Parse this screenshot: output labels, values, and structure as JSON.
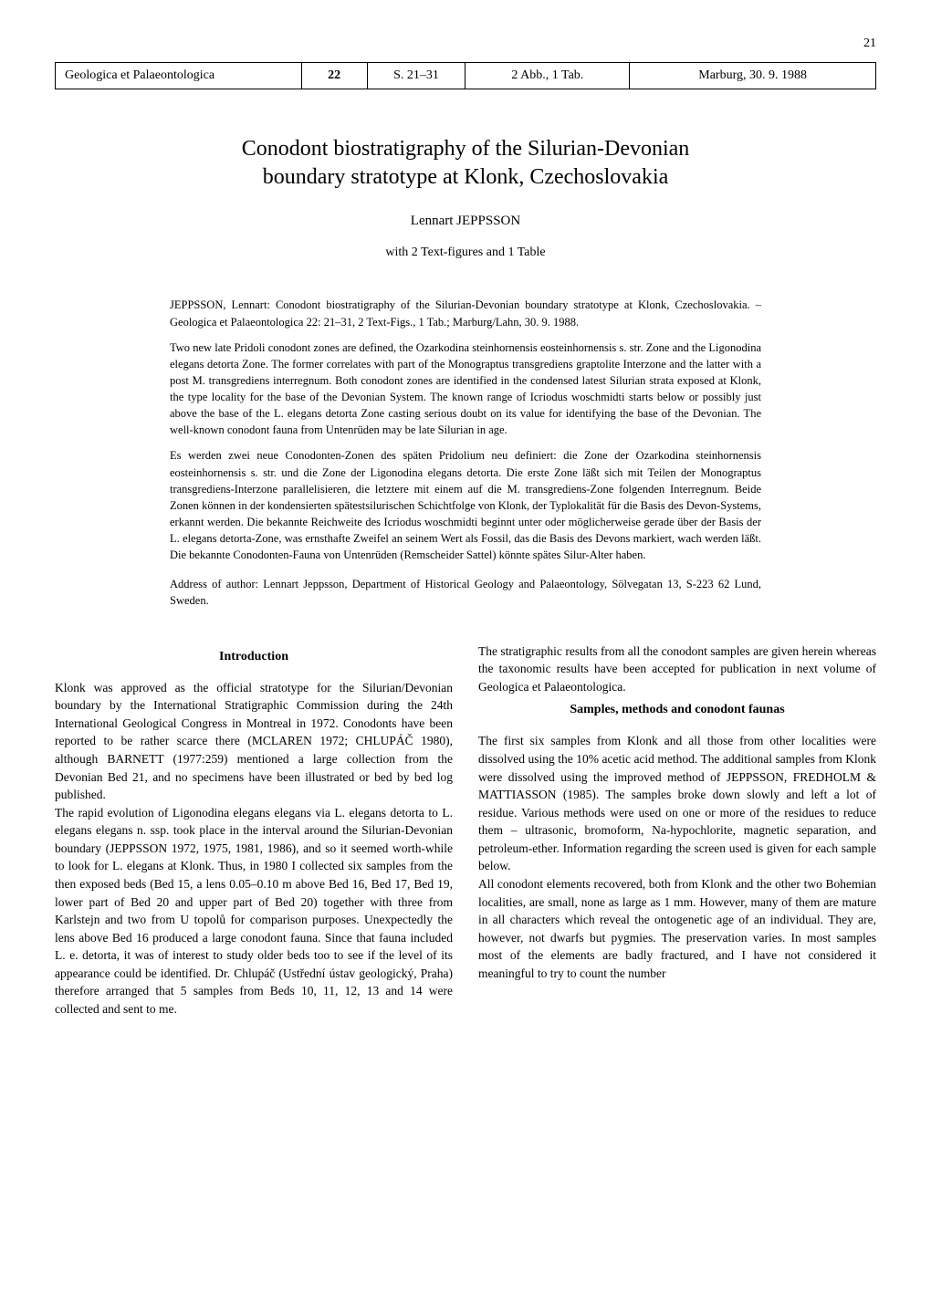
{
  "page_number": "21",
  "header": {
    "journal": "Geologica et Palaeontologica",
    "volume": "22",
    "pages": "S. 21–31",
    "figs": "2 Abb., 1 Tab.",
    "place_date": "Marburg, 30. 9. 1988"
  },
  "title_line1": "Conodont biostratigraphy of the Silurian-Devonian",
  "title_line2": "boundary stratotype at Klonk, Czechoslovakia",
  "author": "Lennart JEPPSSON",
  "figures_note": "with 2 Text-figures and 1 Table",
  "abstract": {
    "citation": "JEPPSSON, Lennart: Conodont biostratigraphy of the Silurian-Devonian boundary stratotype at Klonk, Czechoslovakia. – Geologica et Palaeontologica 22: 21–31, 2 Text-Figs., 1 Tab.; Marburg/Lahn, 30. 9. 1988.",
    "para_en": "Two new late Pridoli conodont zones are defined, the Ozarkodina steinhornensis eosteinhornensis s. str. Zone and the Ligonodina elegans detorta Zone. The former correlates with part of the Monograptus transgrediens graptolite Interzone and the latter with a post M. transgrediens interregnum. Both conodont zones are identified in the condensed latest Silurian strata exposed at Klonk, the type locality for the base of the Devonian System. The known range of Icriodus woschmidti starts below or possibly just above the base of the L. elegans detorta Zone casting serious doubt on its value for identifying the base of the Devonian. The well-known conodont fauna from Untenrüden may be late Silurian in age.",
    "para_de": "Es werden zwei neue Conodonten-Zonen des späten Pridolium neu definiert: die Zone der Ozarkodina steinhornensis eosteinhornensis s. str. und die Zone der Ligonodina elegans detorta. Die erste Zone läßt sich mit Teilen der Monograptus transgrediens-Interzone parallelisieren, die letztere mit einem auf die M. transgrediens-Zone folgenden Interregnum. Beide Zonen können in der kondensierten spätestsilurischen Schichtfolge von Klonk, der Typlokalität für die Basis des Devon-Systems, erkannt werden. Die bekannte Reichweite des Icriodus woschmidti beginnt unter oder möglicherweise gerade über der Basis der L. elegans detorta-Zone, was ernsthafte Zweifel an seinem Wert als Fossil, das die Basis des Devons markiert, wach werden läßt. Die bekannte Conodonten-Fauna von Untenrüden (Remscheider Sattel) könnte spätes Silur-Alter haben.",
    "address": "Address of author: Lennart Jeppsson, Department of Historical Geology and Palaeontology, Sölvegatan 13, S-223 62 Lund, Sweden."
  },
  "intro": {
    "heading": "Introduction",
    "p1": "Klonk was approved as the official stratotype for the Silurian/Devonian boundary by the International Stratigraphic Commission during the 24th International Geological Congress in Montreal in 1972. Conodonts have been reported to be rather scarce there (MCLAREN 1972; CHLUPÁČ 1980), although BARNETT (1977:259) mentioned a large collection from the Devonian Bed 21, and no specimens have been illustrated or bed by bed log published.",
    "p2": "The rapid evolution of Ligonodina elegans elegans via L. elegans detorta to L. elegans elegans n. ssp. took place in the interval around the Silurian-Devonian boundary (JEPPSSON 1972, 1975, 1981, 1986), and so it seemed worth-while to look for L. elegans at Klonk. Thus, in 1980 I collected six samples from the then exposed beds (Bed 15, a lens 0.05–0.10 m above Bed 16, Bed 17, Bed 19, lower part of Bed 20 and upper part of Bed 20) together with three from Karlstejn and two from U topolů for comparison purposes. Unexpectedly the lens above Bed 16 produced a large conodont fauna. Since that fauna included L. e. detorta, it was of interest to study older beds too to see if the level of its appearance could be identified. Dr. Chlupáč (Ustřední ústav geologický, Praha) therefore arranged that 5 samples from Beds 10, 11, 12, 13 and 14 were collected and sent to me."
  },
  "right": {
    "p1": "The stratigraphic results from all the conodont samples are given herein whereas the taxonomic results have been accepted for publication in next volume of Geologica et Palaeontologica.",
    "heading": "Samples, methods and conodont faunas",
    "p2": "The first six samples from Klonk and all those from other localities were dissolved using the 10% acetic acid method. The additional samples from Klonk were dissolved using the improved method of JEPPSSON, FREDHOLM & MATTIASSON (1985). The samples broke down slowly and left a lot of residue. Various methods were used on one or more of the residues to reduce them – ultrasonic, bromoform, Na-hypochlorite, magnetic separation, and petroleum-ether. Information regarding the screen used is given for each sample below.",
    "p3": "All conodont elements recovered, both from Klonk and the other two Bohemian localities, are small, none as large as 1 mm. However, many of them are mature in all characters which reveal the ontogenetic age of an individual. They are, however, not dwarfs but pygmies. The preservation varies. In most samples most of the elements are badly fractured, and I have not considered it meaningful to try to count the number"
  }
}
